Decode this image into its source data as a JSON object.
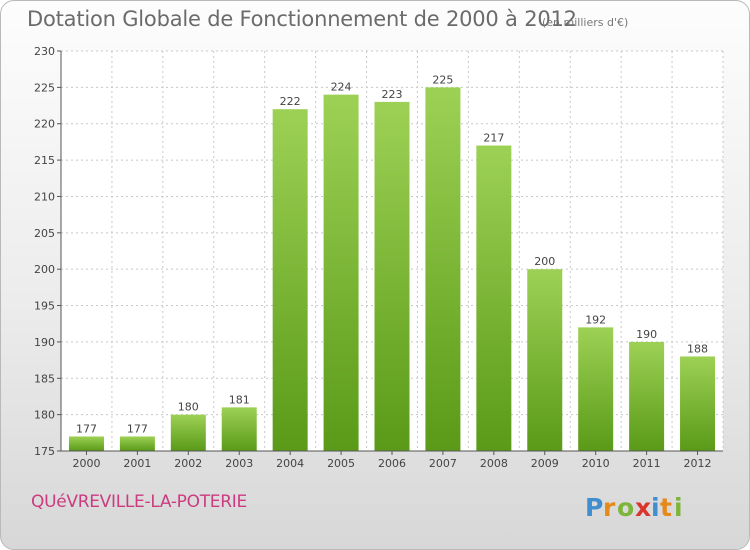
{
  "title": "Dotation Globale de Fonctionnement de 2000 à 2012",
  "unit": "(en milliers d'€)",
  "commune": "QUéVREVILLE-LA-POTERIE",
  "logo_text": "Proxiti",
  "colors": {
    "bar_light": "#9dd155",
    "bar_dark": "#5a9a18",
    "title": "#6b6b6b",
    "commune": "#cc3b80"
  },
  "chart_data": {
    "type": "bar",
    "title": "Dotation Globale de Fonctionnement de 2000 à 2012",
    "xlabel": "",
    "ylabel": "",
    "categories": [
      "2000",
      "2001",
      "2002",
      "2003",
      "2004",
      "2005",
      "2006",
      "2007",
      "2008",
      "2009",
      "2010",
      "2011",
      "2012"
    ],
    "values": [
      177,
      177,
      180,
      181,
      222,
      224,
      223,
      225,
      217,
      200,
      192,
      190,
      188
    ],
    "ylim": [
      175,
      230
    ],
    "yticks": [
      175,
      180,
      185,
      190,
      195,
      200,
      205,
      210,
      215,
      220,
      225,
      230
    ],
    "grid": true,
    "legend": "none"
  }
}
